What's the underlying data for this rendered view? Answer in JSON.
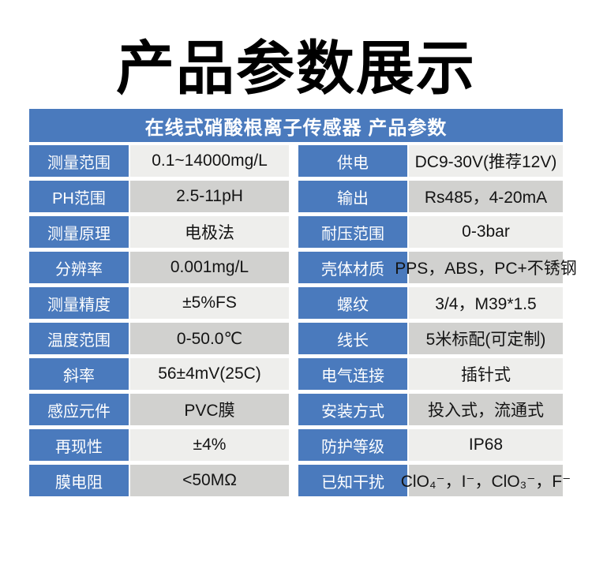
{
  "page": {
    "title": "产品参数展示"
  },
  "table": {
    "header": "在线式硝酸根离子传感器 产品参数",
    "colors": {
      "accent_blue": "#4a7abd",
      "row_light": "#eeeeec",
      "row_dark": "#d1d1cf",
      "header_text": "#ffffff",
      "value_text": "#141414"
    },
    "rows": [
      {
        "label_left": "测量范围",
        "value_left": "0.1~14000mg/L",
        "label_right": "供电",
        "value_right": "DC9-30V(推荐12V)"
      },
      {
        "label_left": "PH范围",
        "value_left": "2.5-11pH",
        "label_right": "输出",
        "value_right": "Rs485，4-20mA"
      },
      {
        "label_left": "测量原理",
        "value_left": "电极法",
        "label_right": "耐压范围",
        "value_right": "0-3bar"
      },
      {
        "label_left": "分辨率",
        "value_left": "0.001mg/L",
        "label_right": "壳体材质",
        "value_right": "PPS，ABS，PC+不锈钢"
      },
      {
        "label_left": "测量精度",
        "value_left": "±5%FS",
        "label_right": "螺纹",
        "value_right": "3/4，M39*1.5"
      },
      {
        "label_left": "温度范围",
        "value_left": "0-50.0℃",
        "label_right": "线长",
        "value_right": "5米标配(可定制)"
      },
      {
        "label_left": "斜率",
        "value_left": "56±4mV(25C)",
        "label_right": "电气连接",
        "value_right": "插针式"
      },
      {
        "label_left": "感应元件",
        "value_left": "PVC膜",
        "label_right": "安装方式",
        "value_right": "投入式，流通式"
      },
      {
        "label_left": "再现性",
        "value_left": "±4%",
        "label_right": "防护等级",
        "value_right": "IP68"
      },
      {
        "label_left": "膜电阻",
        "value_left": "<50MΩ",
        "label_right": "已知干扰",
        "value_right": "ClO₄⁻，I⁻，ClO₃⁻，F⁻"
      }
    ]
  }
}
